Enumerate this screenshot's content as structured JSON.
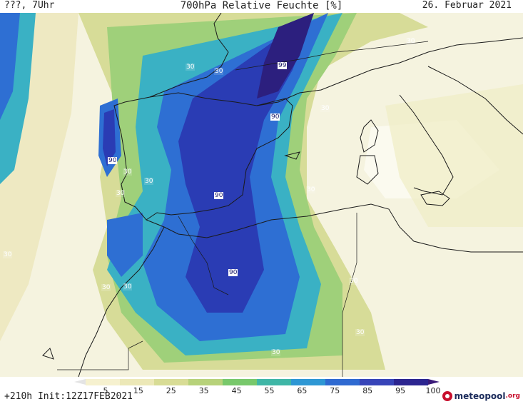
{
  "header": {
    "run_label": "???, 7Uhr",
    "title": "700hPa Relative Feuchte [%]",
    "date": "26. Februar 2021"
  },
  "contour_labels": [
    "99",
    "90",
    "90",
    "90",
    "90",
    "30",
    "30",
    "30",
    "30",
    "30",
    "30",
    "30",
    "30",
    "30",
    "30",
    "30",
    "30",
    "30",
    "30"
  ],
  "legend": {
    "ticks": [
      "5",
      "15",
      "25",
      "35",
      "45",
      "55",
      "65",
      "75",
      "85",
      "95",
      "100"
    ],
    "colors": [
      "#f2f2f2",
      "#f6f1cf",
      "#ece8b7",
      "#d8dc95",
      "#b7d27a",
      "#78c86b",
      "#3fb6a6",
      "#2e97d4",
      "#2f6ad1",
      "#3744b8",
      "#2c2590",
      "#3a1a78"
    ]
  },
  "footer": {
    "init_text": "+210h Init:12Z17FEB2021",
    "brand_name": "meteopool",
    "brand_suffix": ".org"
  },
  "colors": {
    "very_dry": "#f5f3df",
    "dry": "#e9e5ba",
    "moderate": "#bfd483",
    "green": "#7dc86b",
    "cyan": "#3ab1c4",
    "blue": "#2e6fd3",
    "deep_blue": "#2a3cb4",
    "purple": "#2c1f7e",
    "coast": "#1a1a1a"
  }
}
